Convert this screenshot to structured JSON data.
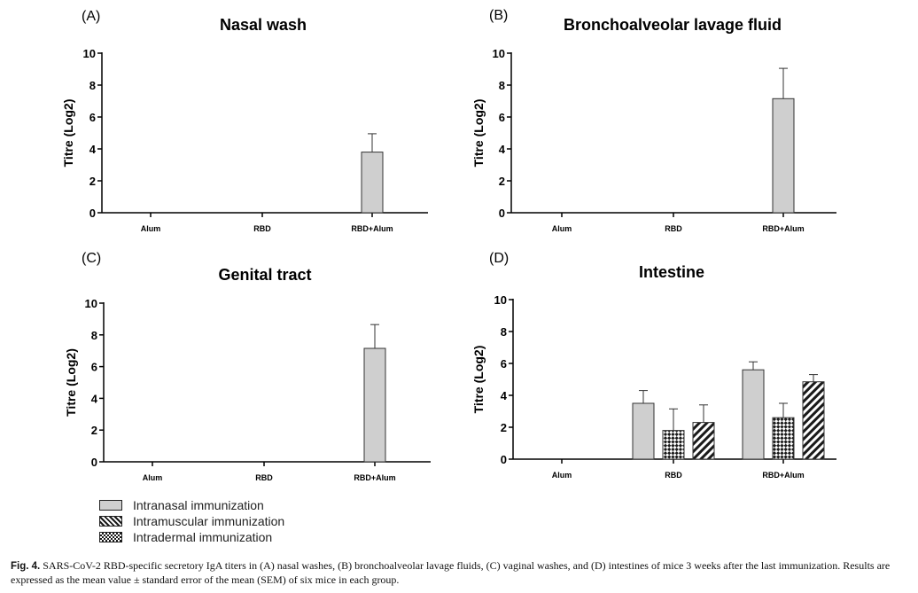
{
  "chart_data": [
    {
      "panel": "(A)",
      "title": "Nasal wash",
      "type": "bar",
      "ylabel": "Titre (Log2)",
      "ylim": [
        0,
        10
      ],
      "yticks": [
        "0",
        "2",
        "4",
        "6",
        "8",
        "10"
      ],
      "categories": [
        "Alum",
        "RBD",
        "RBD+Alum"
      ],
      "series": [
        {
          "name": "Intranasal immunization",
          "values": [
            0,
            0,
            3.8
          ],
          "errors": [
            0,
            0,
            1.15
          ]
        }
      ]
    },
    {
      "panel": "(B)",
      "title": "Bronchoalveolar lavage fluid",
      "type": "bar",
      "ylabel": "Titre (Log2)",
      "ylim": [
        0,
        10
      ],
      "yticks": [
        "0",
        "2",
        "4",
        "6",
        "8",
        "10"
      ],
      "categories": [
        "Alum",
        "RBD",
        "RBD+Alum"
      ],
      "series": [
        {
          "name": "Intranasal immunization",
          "values": [
            0,
            0,
            7.15
          ],
          "errors": [
            0,
            0,
            1.9
          ]
        }
      ]
    },
    {
      "panel": "(C)",
      "title": "Genital tract",
      "type": "bar",
      "ylabel": "Titre (Log2)",
      "ylim": [
        0,
        10
      ],
      "yticks": [
        "0",
        "2",
        "4",
        "6",
        "8",
        "10"
      ],
      "categories": [
        "Alum",
        "RBD",
        "RBD+Alum"
      ],
      "series": [
        {
          "name": "Intranasal immunization",
          "values": [
            0,
            0,
            7.15
          ],
          "errors": [
            0,
            0,
            1.5
          ]
        }
      ]
    },
    {
      "panel": "(D)",
      "title": "Intestine",
      "type": "bar",
      "ylabel": "Titre (Log2)",
      "ylim": [
        0,
        10
      ],
      "yticks": [
        "0",
        "2",
        "4",
        "6",
        "8",
        "10"
      ],
      "categories": [
        "Alum",
        "RBD",
        "RBD+Alum"
      ],
      "series": [
        {
          "name": "Intranasal immunization",
          "values": [
            0,
            3.5,
            5.6
          ],
          "errors": [
            0,
            0.8,
            0.5
          ]
        },
        {
          "name": "Intradermal immunization",
          "values": [
            0,
            1.8,
            2.6
          ],
          "errors": [
            0,
            1.35,
            0.9
          ]
        },
        {
          "name": "Intramuscular immunization",
          "values": [
            0,
            2.3,
            4.85
          ],
          "errors": [
            0,
            1.1,
            0.45
          ]
        }
      ]
    }
  ],
  "legend": [
    {
      "label": "Intranasal immunization",
      "pattern": "solid-gray"
    },
    {
      "label": "Intramuscular immunization",
      "pattern": "diagonal-stripes"
    },
    {
      "label": "Intradermal immunization",
      "pattern": "checkered"
    }
  ],
  "caption": {
    "label": "Fig. 4.",
    "text": "SARS-CoV-2 RBD-specific secretory IgA titers in (A) nasal washes, (B) bronchoalveolar lavage fluids, (C) vaginal washes, and (D) intestines of mice 3 weeks after the last immunization. Results are expressed as the mean value ± standard error of the mean (SEM) of six mice in each group."
  },
  "colors": {
    "bar_fill": "#cfcfcf",
    "bar_stroke": "#333333",
    "axis": "#000000"
  }
}
